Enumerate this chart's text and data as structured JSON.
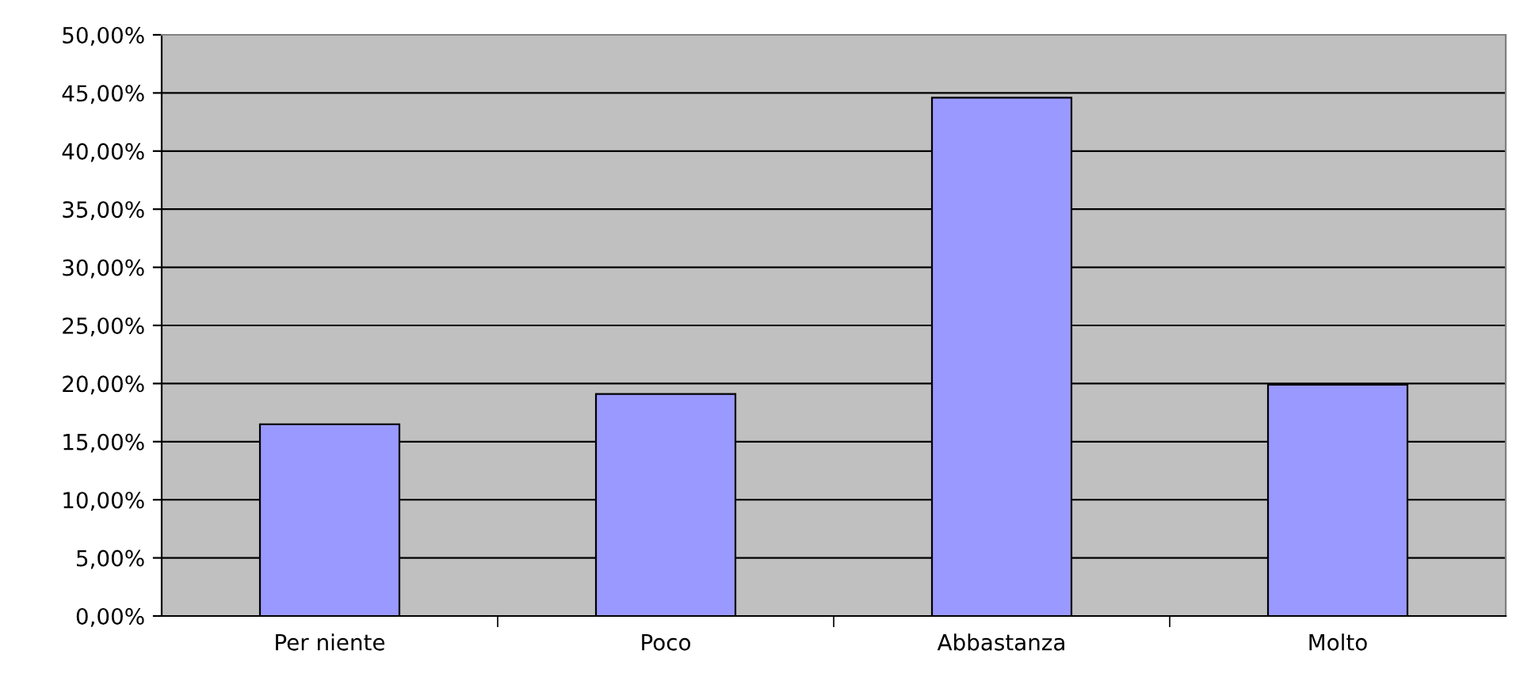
{
  "chart_data": {
    "type": "bar",
    "categories": [
      "Per niente",
      "Poco",
      "Abbastanza",
      "Molto"
    ],
    "values": [
      16.5,
      19.1,
      44.6,
      19.9
    ],
    "color": "#9999ff",
    "ylim": [
      0,
      50
    ],
    "yticks": [
      {
        "value": 0,
        "label": "0,00%"
      },
      {
        "value": 5,
        "label": "5,00%"
      },
      {
        "value": 10,
        "label": "10,00%"
      },
      {
        "value": 15,
        "label": "15,00%"
      },
      {
        "value": 20,
        "label": "20,00%"
      },
      {
        "value": 25,
        "label": "25,00%"
      },
      {
        "value": 30,
        "label": "30,00%"
      },
      {
        "value": 35,
        "label": "35,00%"
      },
      {
        "value": 40,
        "label": "40,00%"
      },
      {
        "value": 45,
        "label": "45,00%"
      },
      {
        "value": 50,
        "label": "50,00%"
      }
    ],
    "grid": "y",
    "legend": false
  }
}
